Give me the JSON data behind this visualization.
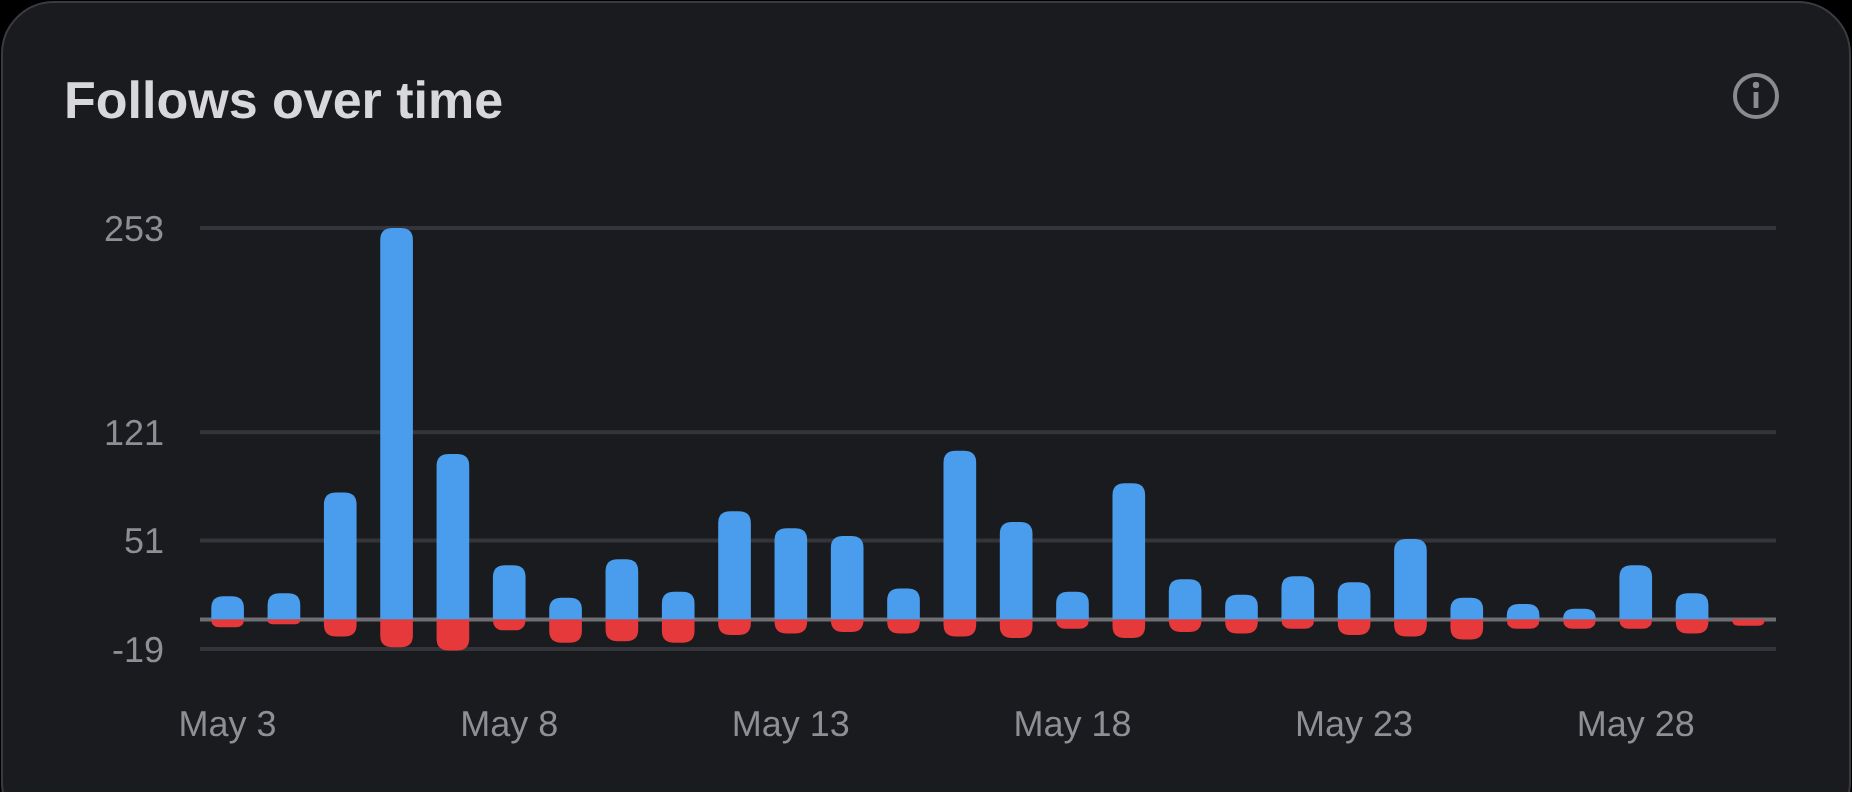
{
  "chart_data": {
    "type": "bar",
    "title": "Follows over time",
    "stacked": true,
    "categories": [
      "May 3",
      null,
      null,
      null,
      null,
      "May 8",
      null,
      null,
      null,
      null,
      "May 13",
      null,
      null,
      null,
      null,
      "May 18",
      null,
      null,
      null,
      null,
      "May 23",
      null,
      null,
      null,
      null,
      "May 28",
      null,
      null
    ],
    "series": [
      {
        "color": "#4a9ded",
        "values": [
          15,
          17,
          82,
          253,
          107,
          35,
          14,
          39,
          18,
          70,
          59,
          54,
          20,
          109,
          63,
          18,
          88,
          26,
          16,
          28,
          24,
          52,
          14,
          10,
          7,
          35,
          17,
          0
        ]
      },
      {
        "color": "#e5393b",
        "values": [
          -5,
          -3,
          -11,
          -18,
          -20,
          -7,
          -15,
          -14,
          -15,
          -10,
          -9,
          -8,
          -9,
          -11,
          -12,
          -6,
          -12,
          -8,
          -9,
          -6,
          -10,
          -11,
          -13,
          -6,
          -6,
          -6,
          -9,
          -4
        ]
      }
    ],
    "ylim": [
      -21,
      253
    ],
    "yticks": [
      -19,
      51,
      121,
      253
    ],
    "grid": "y"
  }
}
